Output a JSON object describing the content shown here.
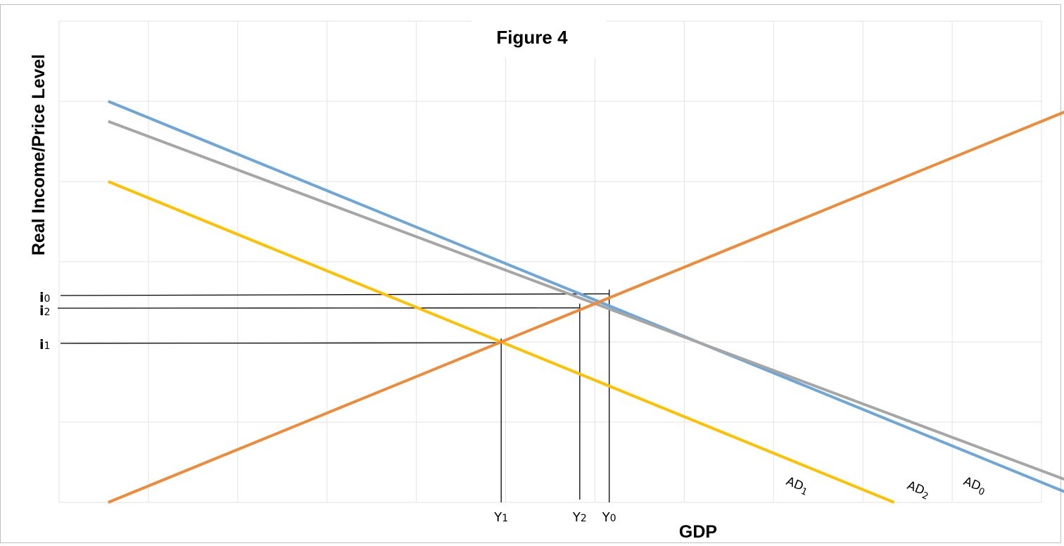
{
  "chart_data": {
    "type": "line",
    "title": "Figure 4",
    "xlabel": "GDP",
    "ylabel": "Real Income/Price Level",
    "xlim": [
      0,
      10
    ],
    "ylim": [
      0,
      10
    ],
    "grid": true,
    "series": [
      {
        "name": "AD0",
        "label_main": "AD",
        "label_sub": "0",
        "color": "#6ea6d8",
        "x": [
          0.5,
          10.5
        ],
        "y": [
          10,
          0
        ]
      },
      {
        "name": "AD2",
        "label_main": "AD",
        "label_sub": "2",
        "color": "#a6a6a6",
        "x": [
          0.5,
          10.5
        ],
        "y": [
          9.5,
          0.33
        ]
      },
      {
        "name": "AD1",
        "label_main": "AD",
        "label_sub": "1",
        "color": "#ffc000",
        "x": [
          0.5,
          8.5
        ],
        "y": [
          8,
          0
        ]
      },
      {
        "name": "",
        "color": "#ed8b3b",
        "x": [
          0.5,
          10.5
        ],
        "y": [
          0,
          10
        ]
      }
    ],
    "y_ticks": [
      {
        "main": "i",
        "sub": "0",
        "value": 5.2
      },
      {
        "main": "i",
        "sub": "2",
        "value": 4.85
      },
      {
        "main": "i",
        "sub": "1",
        "value": 3.98
      }
    ],
    "x_ticks": [
      {
        "main": "Y",
        "sub": "1",
        "value": 4.5
      },
      {
        "main": "Y",
        "sub": "2",
        "value": 5.3
      },
      {
        "main": "Y",
        "sub": "0",
        "value": 5.6
      }
    ]
  }
}
